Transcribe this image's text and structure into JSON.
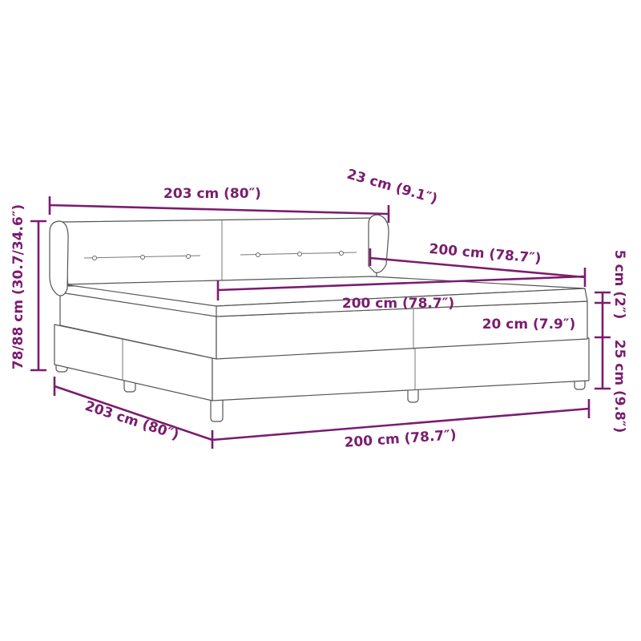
{
  "diagram": {
    "accent_color": "#7b1c6f",
    "subject": "boxspring-bed",
    "labels": {
      "overall_length": "203 cm (80″)",
      "headboard_depth": "23 cm (9.1″)",
      "headboard_width": "200 cm (78.7″)",
      "mattress_width": "200 cm (78.7″)",
      "topper_height": "5 cm (2″)",
      "mattress_height": "20 cm (7.9″)",
      "base_height": "25 cm (9.8″)",
      "total_height": "78/88 cm (30.7/34.6″)",
      "base_length": "203 cm (80″)",
      "base_width": "200 cm (78.7″)"
    }
  }
}
